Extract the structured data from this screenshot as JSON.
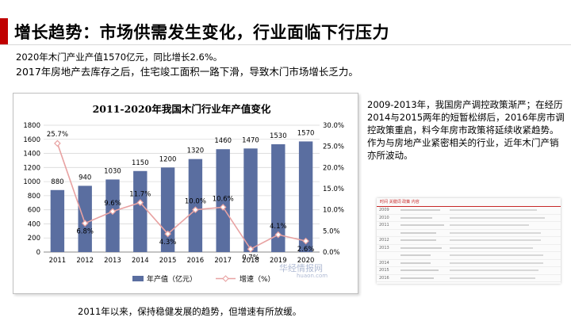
{
  "slide": {
    "title": "增长趋势：市场供需发生变化，行业面临下行压力",
    "lead_line_1": "2020年木门产业产值1570亿元，同比增长2.6%。",
    "lead_line_2": "2017年房地产去库存之后，住宅竣工面积一路下滑，导致木门市场增长乏力。",
    "side_text": "2009-2013年，我国房产调控政策渐严；在经历2014与2015两年的短暂松绑后，2016年房市调控政策重启，料今年房市政策将延续收紧趋势。作为与房地产业紧密相关的行业，近年木门产销亦所波动。",
    "footer": "2011年以来，保持稳健发展的趋势，但增速有所放缓。",
    "watermark": "华经情报网",
    "watermark_sub": "huaon.com",
    "policy_table": {
      "headers": [
        "时间",
        "关键词",
        "政策",
        "内容"
      ],
      "years": [
        "2009",
        "2010",
        "2011",
        "2012",
        "2013",
        "2014",
        "2015",
        "2016"
      ]
    }
  },
  "colors": {
    "accent": "#c00000",
    "bar": "#5a6ea0",
    "line": "#e8a2a2"
  },
  "chart_data": {
    "type": "bar",
    "title": "2011-2020年我国木门行业年产值变化",
    "categories": [
      "2011",
      "2012",
      "2013",
      "2014",
      "2015",
      "2016",
      "2017",
      "2018",
      "2019",
      "2020"
    ],
    "series": [
      {
        "name": "年产值（亿元）",
        "axis": "left",
        "type": "bar",
        "values": [
          880,
          940,
          1030,
          1150,
          1200,
          1320,
          1460,
          1470,
          1530,
          1570
        ],
        "labels": [
          "880",
          "940",
          "1030",
          "1150",
          "1200",
          "1320",
          "1460",
          "1470",
          "1530",
          "1570"
        ]
      },
      {
        "name": "增速（%）",
        "axis": "right",
        "type": "line",
        "values": [
          25.7,
          6.8,
          9.6,
          11.7,
          4.3,
          10.0,
          10.6,
          0.7,
          4.1,
          2.6
        ],
        "labels": [
          "25.7%",
          "6.8%",
          "9.6%",
          "11.7%",
          "4.3%",
          "10.0%",
          "10.6%",
          "0.7%",
          "4.1%",
          "2.6%"
        ]
      }
    ],
    "y_left": {
      "min": 0,
      "max": 1800,
      "ticks": [
        "0",
        "200",
        "400",
        "600",
        "800",
        "1000",
        "1200",
        "1400",
        "1600",
        "1800"
      ]
    },
    "y_right": {
      "min": 0,
      "max": 30,
      "ticks": [
        "0.0%",
        "5.0%",
        "10.0%",
        "15.0%",
        "20.0%",
        "25.0%",
        "30.0%"
      ]
    },
    "legend_position": "bottom",
    "grid": true
  }
}
